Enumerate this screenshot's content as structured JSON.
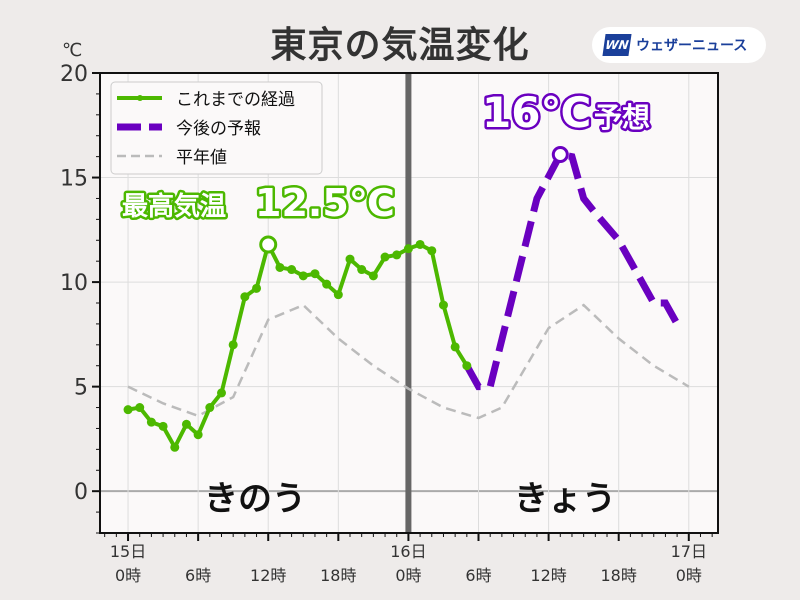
{
  "title": "東京の気温変化",
  "logo": {
    "mark": "WN",
    "text": "ウェザーニュース"
  },
  "colors": {
    "observed": "#4cb800",
    "forecast": "#6a00c0",
    "normal": "#bbbbbb",
    "separator": "#666666"
  },
  "chart_data": {
    "type": "line",
    "title": "東京の気温変化",
    "ylabel": "℃",
    "ylim": [
      -2,
      20
    ],
    "yticks": [
      0,
      5,
      10,
      15,
      20
    ],
    "xlim": [
      -2.4,
      50.5
    ],
    "xticks": [
      {
        "h": 0,
        "top": "15日",
        "bottom": "0時"
      },
      {
        "h": 6,
        "top": "",
        "bottom": "6時"
      },
      {
        "h": 12,
        "top": "",
        "bottom": "12時"
      },
      {
        "h": 18,
        "top": "",
        "bottom": "18時"
      },
      {
        "h": 24,
        "top": "16日",
        "bottom": "0時"
      },
      {
        "h": 30,
        "top": "",
        "bottom": "6時"
      },
      {
        "h": 36,
        "top": "",
        "bottom": "12時"
      },
      {
        "h": 42,
        "top": "",
        "bottom": "18時"
      },
      {
        "h": 48,
        "top": "17日",
        "bottom": "0時"
      }
    ],
    "grid": true,
    "legend_position": "top-left",
    "series": [
      {
        "name": "これまでの経過",
        "style": "solid-markers",
        "x": [
          0,
          1,
          2,
          3,
          4,
          5,
          6,
          7,
          8,
          9,
          10,
          11,
          12,
          13,
          14,
          15,
          16,
          17,
          18,
          19,
          20,
          21,
          22,
          23,
          24,
          25,
          26,
          27,
          28,
          29
        ],
        "y": [
          3.9,
          4.0,
          3.3,
          3.1,
          2.1,
          3.2,
          2.7,
          4.0,
          4.7,
          7.0,
          9.3,
          9.7,
          11.8,
          10.7,
          10.6,
          10.3,
          10.4,
          9.9,
          9.4,
          11.1,
          10.6,
          10.3,
          11.2,
          11.3,
          11.6,
          11.8,
          11.5,
          8.9,
          6.9,
          6.0
        ]
      },
      {
        "name": "今後の予報",
        "style": "dashed-thick",
        "x": [
          29,
          30,
          31,
          33,
          35,
          37,
          38,
          39,
          40,
          42,
          45,
          46,
          47
        ],
        "y": [
          6.0,
          5.0,
          5.0,
          9.5,
          14.0,
          16.1,
          16.0,
          14.0,
          13.3,
          12.0,
          9.0,
          9.0,
          8.0
        ]
      },
      {
        "name": "平年値",
        "style": "dashed-thin",
        "x": [
          0,
          3,
          6,
          9,
          12,
          15,
          18,
          21,
          24,
          27,
          30,
          32,
          36,
          39,
          42,
          45,
          48
        ],
        "y": [
          5.0,
          4.2,
          3.6,
          4.5,
          8.2,
          8.9,
          7.3,
          6.0,
          4.9,
          4.0,
          3.5,
          4.0,
          7.8,
          8.9,
          7.3,
          6.0,
          5.0
        ]
      }
    ],
    "annotations": {
      "max_label": "最高気温",
      "max_value": "12.5℃",
      "forecast_value": "16℃",
      "forecast_label": "予想",
      "day1": "きのう",
      "day2": "きょう"
    },
    "max_markers": [
      {
        "x": 12,
        "y": 11.8
      },
      {
        "x": 37,
        "y": 16.1
      }
    ]
  }
}
